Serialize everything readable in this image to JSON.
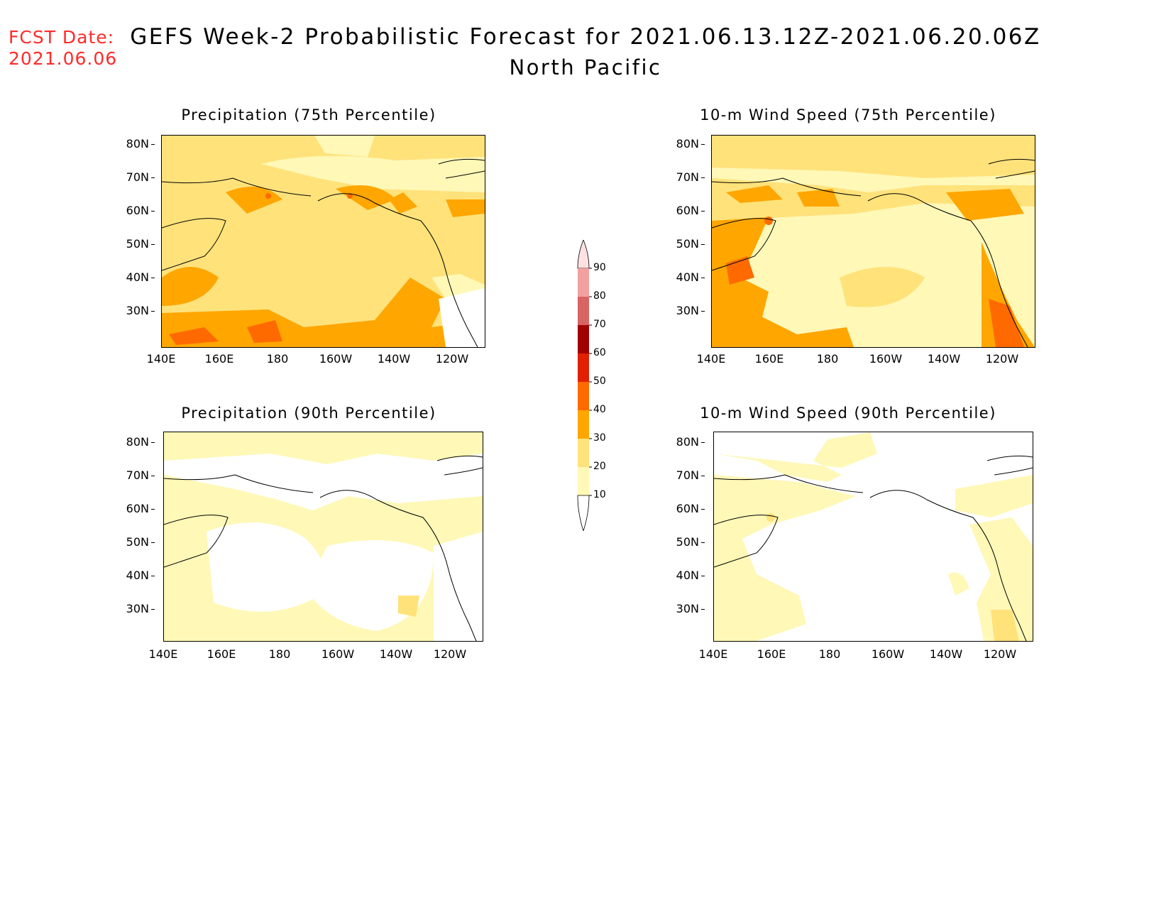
{
  "header": {
    "fcst_label": "FCST Date:",
    "fcst_date": "2021.06.06",
    "title": "GEFS Week-2 Probabilistic Forecast for 2021.06.13.12Z-2021.06.20.06Z",
    "region": "North Pacific"
  },
  "colors": {
    "date_text": "#ff2b2b",
    "scale": [
      "#ffffff",
      "#fff8b7",
      "#ffe27a",
      "#ffa600",
      "#ff6a00",
      "#e02000",
      "#a10000",
      "#d86464",
      "#f3a0a0",
      "#ffe1e1"
    ]
  },
  "axes": {
    "lat_labels": [
      "80N",
      "70N",
      "60N",
      "50N",
      "40N",
      "30N"
    ],
    "lon_labels": [
      "140E",
      "160E",
      "180",
      "160W",
      "140W",
      "120W"
    ]
  },
  "panels": [
    {
      "id": "precip-75",
      "title": "Precipitation (75th Percentile)"
    },
    {
      "id": "wind-75",
      "title": "10-m Wind Speed (75th Percentile)"
    },
    {
      "id": "precip-90",
      "title": "Precipitation (90th Percentile)"
    },
    {
      "id": "wind-90",
      "title": "10-m Wind Speed (90th Percentile)"
    }
  ],
  "colorbar": {
    "levels": [
      "90",
      "80",
      "70",
      "60",
      "50",
      "40",
      "30",
      "20",
      "10"
    ]
  }
}
